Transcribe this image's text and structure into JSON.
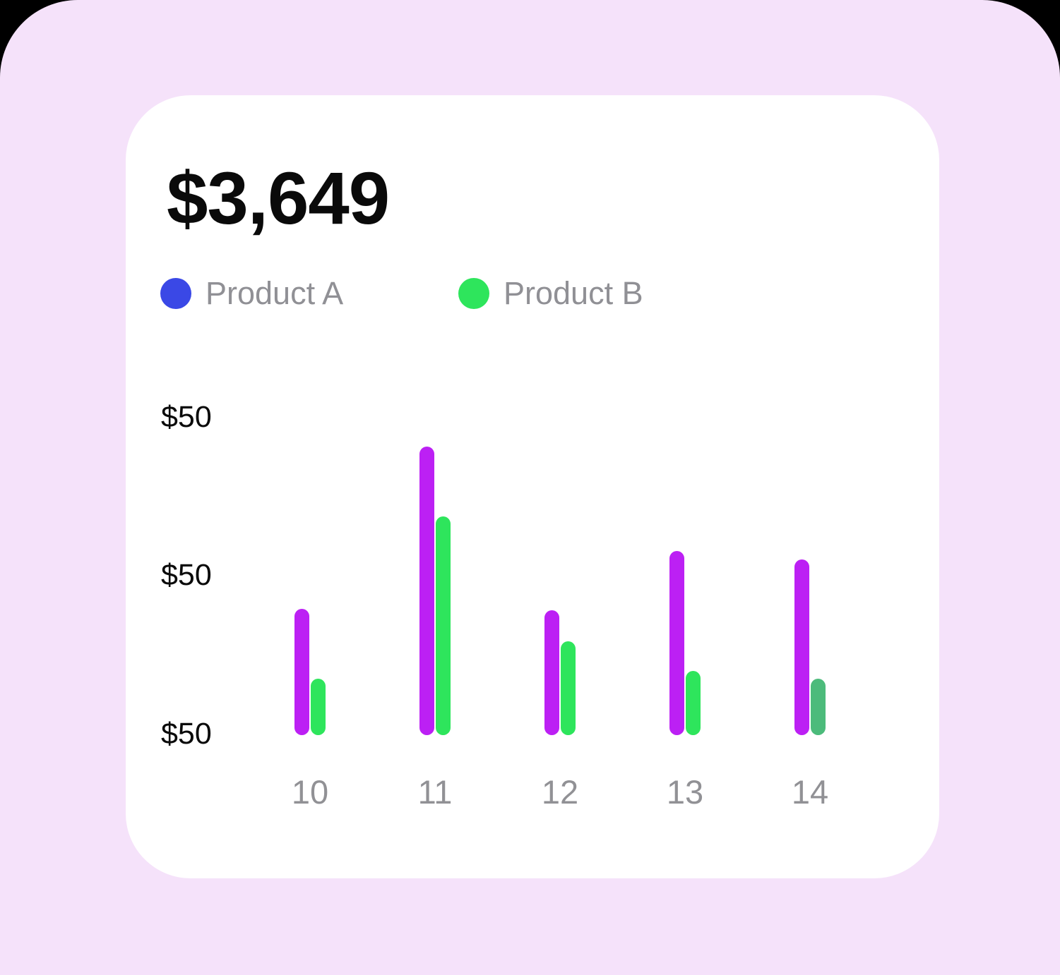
{
  "card": {
    "title": "$3,649",
    "legend": [
      {
        "label": "Product A",
        "color": "#3A48E6"
      },
      {
        "label": "Product B",
        "color": "#2EE55C"
      }
    ]
  },
  "chart_data": {
    "type": "bar",
    "title": "$3,649",
    "categories": [
      "10",
      "11",
      "12",
      "13",
      "14"
    ],
    "series": [
      {
        "name": "Product A",
        "color": "#BC20F4",
        "values": [
          19.8,
          45.2,
          19.6,
          28.8,
          27.5
        ]
      },
      {
        "name": "Product B",
        "color": "#2EE55C",
        "values": [
          8.8,
          34.2,
          14.7,
          10.0,
          8.8
        ],
        "point_colors": [
          null,
          null,
          null,
          null,
          "#4CBB7B"
        ]
      }
    ],
    "y_ticks": [
      "$50",
      "$50",
      "$50"
    ],
    "xlabel": "",
    "ylabel": "",
    "ylim": [
      0,
      50
    ],
    "grid": false,
    "legend_position": "top"
  },
  "colors": {
    "page_background": "#000000",
    "app_background": "#F5E2FA",
    "card_background": "#FFFFFF",
    "title_text": "#0A0A0A",
    "legend_text": "#909095",
    "axis_text": "#919195",
    "product_a_bar": "#BC20F4",
    "product_b_bar": "#2EE55C",
    "product_b_bar_muted": "#4CBB7B",
    "legend_dot_a": "#3A48E6",
    "legend_dot_b": "#2EE55C"
  }
}
